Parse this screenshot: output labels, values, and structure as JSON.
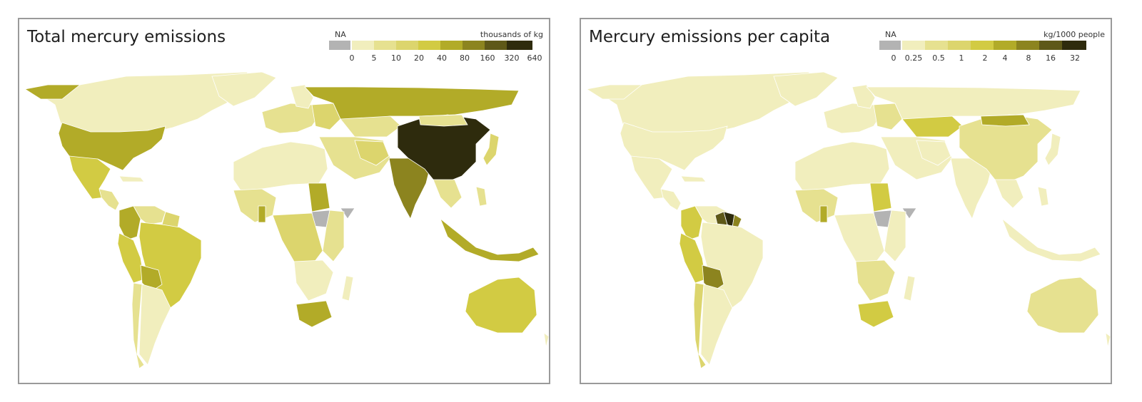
{
  "panels": [
    {
      "title": "Total mercury emissions",
      "legend": {
        "na_label": "NA",
        "unit": "thousands of kg",
        "ticks": [
          "0",
          "5",
          "10",
          "20",
          "40",
          "80",
          "160",
          "320",
          "640"
        ],
        "colors": [
          "#b3b3b3",
          "#f1eebd",
          "#e6e190",
          "#dcd56d",
          "#d2cb43",
          "#b2ab28",
          "#8c841f",
          "#5e5818",
          "#2e2b0d"
        ]
      }
    },
    {
      "title": "Mercury emissions per capita",
      "legend": {
        "na_label": "NA",
        "unit": "kg/1000 people",
        "ticks": [
          "0",
          "0.25",
          "0.5",
          "1",
          "2",
          "4",
          "8",
          "16",
          "32"
        ],
        "colors": [
          "#b3b3b3",
          "#f1eebd",
          "#e6e190",
          "#dcd56d",
          "#d2cb43",
          "#b2ab28",
          "#8c841f",
          "#5e5818",
          "#2e2b0d"
        ]
      }
    }
  ]
}
